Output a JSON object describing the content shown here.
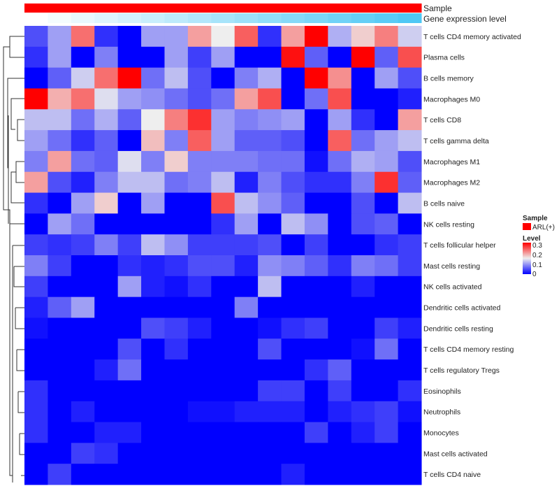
{
  "chart_data": {
    "type": "heatmap",
    "title": "",
    "annotation_rows": [
      "Sample",
      "Gene expression level"
    ],
    "sample_annotation": "ARL(+)",
    "colors": {
      "low": "#0000ff",
      "mid": "#eeeeee",
      "high": "#ff0000",
      "sample": "#ff0000",
      "gene_low": "#ffffff",
      "gene_high": "#4fc8f5"
    },
    "legend": {
      "sample_title": "Sample",
      "sample_label": "ARL(+)",
      "level_title": "Level",
      "level_ticks": [
        "0.3",
        "0.2",
        "0.1",
        "0"
      ],
      "range": [
        0,
        0.3
      ],
      "placement": "right"
    },
    "rows": [
      "T cells CD4 memory activated",
      "Plasma cells",
      "B cells memory",
      "Macrophages M0",
      "T cells CD8",
      "T cells gamma delta",
      "Macrophages M1",
      "Macrophages M2",
      "B cells naive",
      "NK cells resting",
      "T cells follicular helper",
      "Mast cells resting",
      "NK cells activated",
      "Dendritic cells activated",
      "Dendritic cells resting",
      "T cells CD4 memory resting",
      "T cells regulatory  Tregs",
      "Eosinophils",
      "Neutrophils",
      "Monocytes",
      "Mast cells activated",
      "T cells CD4 naive"
    ],
    "columns_count": 17,
    "values": [
      [
        0.05,
        0.1,
        0.23,
        0.03,
        0,
        0.1,
        0.1,
        0.2,
        0.15,
        0.24,
        0.03,
        0.2,
        0.3,
        0.11,
        0.17,
        0.22,
        0.13
      ],
      [
        0.03,
        0.1,
        0,
        0.08,
        0,
        0,
        0.1,
        0.04,
        0.1,
        0,
        0,
        0.29,
        0.06,
        0,
        0.3,
        0.06,
        0.25
      ],
      [
        0,
        0.06,
        0.13,
        0.23,
        0.3,
        0.07,
        0.12,
        0.05,
        0,
        0.08,
        0.11,
        0,
        0.3,
        0.21,
        0,
        0.1,
        0.05
      ],
      [
        0.3,
        0.19,
        0.23,
        0.14,
        0.1,
        0.09,
        0.07,
        0.05,
        0.07,
        0.2,
        0.25,
        0,
        0.07,
        0.25,
        0,
        0,
        0.02
      ],
      [
        0.12,
        0.12,
        0.07,
        0.11,
        0.06,
        0.15,
        0.22,
        0.27,
        0.1,
        0.08,
        0.09,
        0.1,
        0,
        0.1,
        0.03,
        0,
        0.2
      ],
      [
        0.1,
        0.07,
        0.03,
        0.06,
        0,
        0.18,
        0.08,
        0.24,
        0.1,
        0.06,
        0.06,
        0.05,
        0,
        0.24,
        0.07,
        0.1,
        0.12
      ],
      [
        0.08,
        0.2,
        0.07,
        0.06,
        0.14,
        0.08,
        0.17,
        0.08,
        0.08,
        0.08,
        0.07,
        0.07,
        0.01,
        0.07,
        0.11,
        0.1,
        0.05
      ],
      [
        0.2,
        0.05,
        0.02,
        0.08,
        0.12,
        0.12,
        0.07,
        0.08,
        0.12,
        0.02,
        0.08,
        0.05,
        0.03,
        0.03,
        0.08,
        0.27,
        0.06
      ],
      [
        0.03,
        0,
        0.1,
        0.17,
        0,
        0.1,
        0,
        0,
        0.25,
        0.12,
        0.09,
        0.06,
        0,
        0,
        0.05,
        0,
        0.12
      ],
      [
        0,
        0.1,
        0.07,
        0,
        0,
        0,
        0,
        0,
        0.03,
        0.1,
        0,
        0.12,
        0.09,
        0,
        0.05,
        0.06,
        0
      ],
      [
        0.04,
        0.03,
        0.04,
        0.08,
        0.04,
        0.12,
        0.09,
        0.04,
        0.04,
        0.04,
        0.05,
        0,
        0.04,
        0,
        0,
        0.03,
        0.04
      ],
      [
        0.08,
        0.04,
        0,
        0,
        0.03,
        0.02,
        0.03,
        0.05,
        0.05,
        0.02,
        0.09,
        0.08,
        0.06,
        0.03,
        0.08,
        0.07,
        0.04
      ],
      [
        0.04,
        0,
        0,
        0,
        0.1,
        0.02,
        0.01,
        0.03,
        0,
        0,
        0.12,
        0,
        0,
        0,
        0.02,
        0,
        0
      ],
      [
        0.02,
        0.06,
        0.1,
        0,
        0,
        0,
        0,
        0,
        0,
        0.08,
        0,
        0,
        0,
        0,
        0,
        0,
        0
      ],
      [
        0.01,
        0,
        0,
        0,
        0,
        0.05,
        0.04,
        0.02,
        0,
        0,
        0.01,
        0.03,
        0.04,
        0,
        0,
        0.04,
        0.02
      ],
      [
        0,
        0,
        0,
        0,
        0.05,
        0,
        0.03,
        0,
        0,
        0,
        0.05,
        0,
        0,
        0,
        0.01,
        0.07,
        0
      ],
      [
        0,
        0,
        0,
        0.02,
        0.07,
        0,
        0,
        0,
        0,
        0,
        0,
        0,
        0.03,
        0.06,
        0,
        0,
        0
      ],
      [
        0.03,
        0,
        0,
        0,
        0,
        0,
        0,
        0,
        0,
        0,
        0.04,
        0.04,
        0,
        0.04,
        0,
        0,
        0.03
      ],
      [
        0.03,
        0,
        0.02,
        0,
        0,
        0,
        0,
        0.01,
        0.01,
        0.02,
        0.02,
        0.02,
        0,
        0.02,
        0.03,
        0.04,
        0.01
      ],
      [
        0.03,
        0,
        0,
        0.02,
        0.02,
        0,
        0,
        0,
        0,
        0,
        0,
        0,
        0.04,
        0,
        0.02,
        0.04,
        0
      ],
      [
        0,
        0,
        0.04,
        0.03,
        0,
        0,
        0,
        0,
        0,
        0,
        0,
        0,
        0,
        0,
        0,
        0,
        0
      ],
      [
        0,
        0.04,
        0,
        0,
        0,
        0,
        0,
        0,
        0,
        0,
        0,
        0.02,
        0,
        0,
        0,
        0,
        0
      ]
    ]
  }
}
